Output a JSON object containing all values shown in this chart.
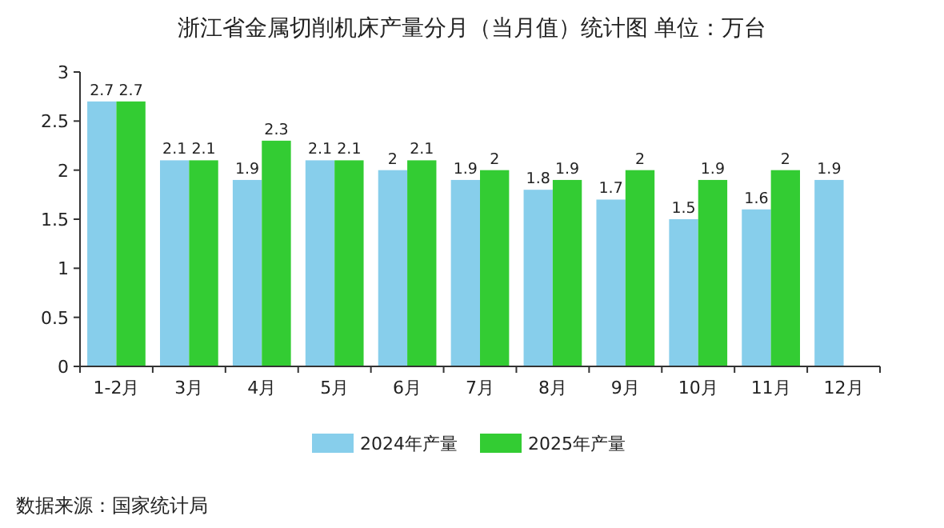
{
  "chart_data": {
    "type": "bar",
    "title": "浙江省金属切削机床产量分月（当月值）统计图 单位：万台",
    "categories": [
      "1-2月",
      "3月",
      "4月",
      "5月",
      "6月",
      "7月",
      "8月",
      "9月",
      "10月",
      "11月",
      "12月"
    ],
    "series": [
      {
        "name": "2024年产量",
        "color": "#87ceeb",
        "values": [
          2.7,
          2.1,
          1.9,
          2.1,
          2,
          1.9,
          1.8,
          1.7,
          1.5,
          1.6,
          1.9
        ]
      },
      {
        "name": "2025年产量",
        "color": "#33cc33",
        "values": [
          2.7,
          2.1,
          2.3,
          2.1,
          2.1,
          2,
          1.9,
          2,
          1.9,
          2,
          null
        ]
      }
    ],
    "ylim": [
      0,
      3
    ],
    "yticks": [
      0,
      0.5,
      1,
      1.5,
      2,
      2.5,
      3
    ],
    "data_labels": true,
    "legend": "bottom",
    "annotations": [
      "数据来源：国家统计局"
    ]
  }
}
